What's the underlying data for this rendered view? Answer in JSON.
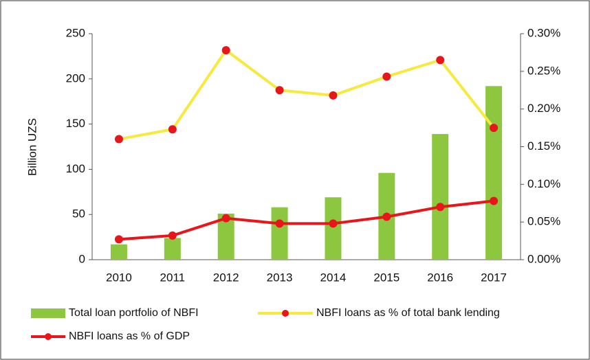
{
  "chart_data": {
    "type": "bar",
    "ylabel": "Billion UZS",
    "categories": [
      "2010",
      "2011",
      "2012",
      "2013",
      "2014",
      "2015",
      "2016",
      "2017"
    ],
    "series": [
      {
        "name": "Total loan portfolio of NBFI",
        "type": "bar",
        "color": "#8dc63f",
        "values": [
          17,
          24,
          51,
          58,
          69,
          96,
          139,
          192
        ]
      },
      {
        "name": "NBFI loans as % of total bank lending",
        "type": "line",
        "axis": "y2",
        "color": "#f7e93e",
        "marker_color": "#e8161b",
        "values": [
          0.16,
          0.173,
          0.278,
          0.225,
          0.218,
          0.243,
          0.265,
          0.175
        ]
      },
      {
        "name": "NBFI loans as % of GDP",
        "type": "line",
        "axis": "y2",
        "color": "#e8161b",
        "marker_color": "#e8161b",
        "values": [
          0.027,
          0.032,
          0.055,
          0.048,
          0.048,
          0.057,
          0.07,
          0.078
        ]
      }
    ],
    "ylim": [
      0,
      250
    ],
    "yticks": [
      0,
      50,
      100,
      150,
      200,
      250
    ],
    "y2lim": [
      0,
      0.3
    ],
    "y2ticks": [
      {
        "value": 0,
        "label": "0.00%"
      },
      {
        "value": 0.05,
        "label": "0.05%"
      },
      {
        "value": 0.1,
        "label": "0.10%"
      },
      {
        "value": 0.15,
        "label": "0.15%"
      },
      {
        "value": 0.2,
        "label": "0.20%"
      },
      {
        "value": 0.25,
        "label": "0.25%"
      },
      {
        "value": 0.3,
        "label": "0.30%"
      }
    ]
  }
}
